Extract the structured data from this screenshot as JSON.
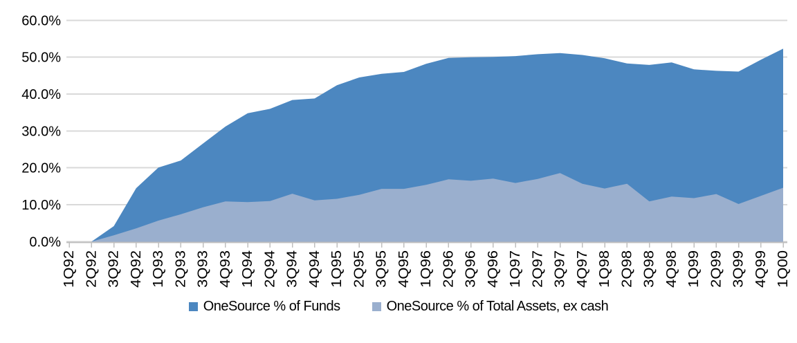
{
  "chart_data": {
    "type": "area",
    "title": "",
    "categories": [
      "1Q92",
      "2Q92",
      "3Q92",
      "4Q92",
      "1Q93",
      "2Q93",
      "3Q93",
      "4Q93",
      "1Q94",
      "2Q94",
      "3Q94",
      "4Q94",
      "1Q95",
      "2Q95",
      "3Q95",
      "4Q95",
      "1Q96",
      "2Q96",
      "3Q96",
      "4Q96",
      "1Q97",
      "2Q97",
      "3Q97",
      "4Q97",
      "1Q98",
      "2Q98",
      "3Q98",
      "4Q98",
      "1Q99",
      "2Q99",
      "3Q99",
      "4Q99",
      "1Q00"
    ],
    "series": [
      {
        "name": "OneSource % of Funds",
        "color": "#4c87c0",
        "values": [
          0.0,
          0.0,
          4.2,
          14.5,
          20.1,
          22.0,
          26.6,
          31.2,
          34.8,
          36.0,
          38.4,
          38.8,
          42.4,
          44.5,
          45.5,
          46.0,
          48.2,
          49.8,
          50.0,
          50.1,
          50.3,
          50.8,
          51.1,
          50.6,
          49.7,
          48.3,
          47.9,
          48.6,
          46.7,
          46.3,
          46.1,
          49.3,
          52.3
        ]
      },
      {
        "name": "OneSource % of Total Assets, ex cash",
        "color": "#9aafce",
        "values": [
          0.0,
          0.0,
          1.7,
          3.6,
          5.7,
          7.4,
          9.3,
          10.9,
          10.7,
          11.0,
          13.0,
          11.2,
          11.6,
          12.7,
          14.3,
          14.3,
          15.4,
          16.9,
          16.5,
          17.1,
          15.9,
          17.0,
          18.6,
          15.7,
          14.4,
          15.7,
          10.9,
          12.2,
          11.8,
          12.9,
          10.2,
          12.4,
          14.6
        ]
      }
    ],
    "yticks": [
      {
        "value": 0,
        "label": "0.0%"
      },
      {
        "value": 10,
        "label": "10.0%"
      },
      {
        "value": 20,
        "label": "20.0%"
      },
      {
        "value": 30,
        "label": "30.0%"
      },
      {
        "value": 40,
        "label": "40.0%"
      },
      {
        "value": 50,
        "label": "50.0%"
      },
      {
        "value": 60,
        "label": "60.0%"
      }
    ],
    "ylim": [
      0,
      60
    ],
    "xlabel": "",
    "ylabel": "",
    "grid": true,
    "x_labels_rotated": true,
    "legend_position": "bottom",
    "grid_color": "#d9d9d9",
    "axis_color": "#bfbfbf",
    "text_color": "#000000",
    "background_color": "#ffffff"
  }
}
